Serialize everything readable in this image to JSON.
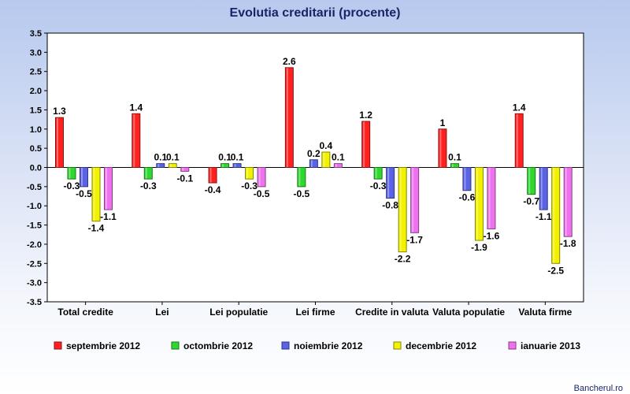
{
  "chart_data": {
    "type": "bar",
    "title": "Evolutia creditarii (procente)",
    "categories": [
      "Total credite",
      "Lei",
      "Lei populatie",
      "Lei firme",
      "Credite in valuta",
      "Valuta populatie",
      "Valuta firme"
    ],
    "series": [
      {
        "name": "septembrie 2012",
        "color": "#ff2020",
        "values": [
          1.3,
          1.4,
          -0.4,
          2.6,
          1.2,
          1,
          1.4
        ]
      },
      {
        "name": "octombrie 2012",
        "color": "#2fd82f",
        "values": [
          -0.3,
          -0.3,
          0.1,
          -0.5,
          -0.3,
          0.1,
          -0.7
        ]
      },
      {
        "name": "noiembrie 2012",
        "color": "#5a62e6",
        "values": [
          -0.5,
          0.1,
          0.1,
          0.2,
          -0.8,
          -0.6,
          -1.1
        ]
      },
      {
        "name": "decembrie 2012",
        "color": "#f2f200",
        "values": [
          -1.4,
          0.1,
          -0.3,
          0.4,
          -2.2,
          -1.9,
          -2.5
        ]
      },
      {
        "name": "ianuarie 2013",
        "color": "#ee72ee",
        "values": [
          -1.1,
          -0.1,
          -0.5,
          0.1,
          -1.7,
          -1.6,
          -1.8
        ]
      }
    ],
    "ylim": [
      -3.5,
      3.5
    ],
    "yticks": [
      "3.5",
      "3.0",
      "2.5",
      "2.0",
      "1.5",
      "1.0",
      "0.5",
      "0.0",
      "-0.5",
      "-1.0",
      "-1.5",
      "-2.0",
      "-2.5",
      "-3.0",
      "-3.5"
    ],
    "grid": false,
    "legend_position": "bottom"
  },
  "credit": "Bancherul.ro"
}
